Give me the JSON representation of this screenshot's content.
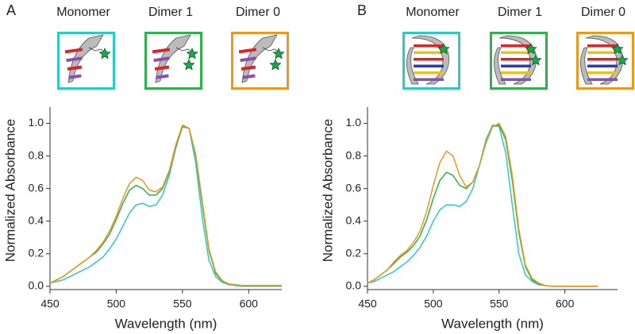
{
  "chart_data": [
    {
      "type": "line",
      "panel": "A",
      "x_label": "Wavelength (nm)",
      "y_label": "Normalized Absorbance",
      "xlim": [
        450,
        625
      ],
      "ylim": [
        -0.02,
        1.1
      ],
      "xticks": [
        450,
        500,
        550,
        600
      ],
      "yticks": [
        {
          "value": 0,
          "label": "0.0"
        },
        0.2,
        0.4,
        0.6,
        0.8,
        {
          "value": 1,
          "label": "1.0"
        }
      ],
      "x": [
        450,
        455,
        460,
        465,
        470,
        475,
        480,
        485,
        490,
        495,
        500,
        505,
        510,
        515,
        520,
        525,
        530,
        535,
        540,
        545,
        550,
        555,
        560,
        565,
        570,
        575,
        580,
        585,
        590,
        595,
        600,
        605,
        610,
        615,
        620,
        625
      ],
      "series": [
        {
          "name": "Monomer",
          "color": "#2cc9c9",
          "values": [
            0.02,
            0.03,
            0.04,
            0.06,
            0.08,
            0.1,
            0.12,
            0.15,
            0.18,
            0.23,
            0.29,
            0.37,
            0.45,
            0.5,
            0.51,
            0.49,
            0.5,
            0.56,
            0.68,
            0.85,
            0.98,
            0.97,
            0.76,
            0.42,
            0.16,
            0.06,
            0.025,
            0.01,
            0.005,
            0,
            0,
            0,
            0,
            0,
            0,
            0
          ]
        },
        {
          "name": "Dimer 1",
          "color": "#2db34a",
          "values": [
            0.02,
            0.04,
            0.06,
            0.09,
            0.12,
            0.15,
            0.18,
            0.21,
            0.26,
            0.32,
            0.41,
            0.51,
            0.59,
            0.62,
            0.6,
            0.56,
            0.56,
            0.6,
            0.7,
            0.86,
            0.98,
            0.97,
            0.8,
            0.5,
            0.22,
            0.08,
            0.03,
            0.015,
            0.01,
            0.005,
            0.005,
            0.005,
            0.005,
            0.005,
            0.005,
            0.005
          ]
        },
        {
          "name": "Dimer 0",
          "color": "#f0951e",
          "values": [
            0.02,
            0.04,
            0.06,
            0.09,
            0.12,
            0.15,
            0.18,
            0.22,
            0.27,
            0.34,
            0.43,
            0.54,
            0.63,
            0.67,
            0.65,
            0.59,
            0.58,
            0.61,
            0.71,
            0.87,
            0.99,
            0.97,
            0.81,
            0.52,
            0.23,
            0.09,
            0.035,
            0.015,
            0.01,
            0.005,
            0.005,
            0.005,
            0.005,
            0.005,
            0.005,
            0.005
          ]
        }
      ]
    },
    {
      "type": "line",
      "panel": "B",
      "x_label": "Wavelength (nm)",
      "y_label": "Normalized Absorbance",
      "xlim": [
        450,
        640
      ],
      "ylim": [
        -0.02,
        1.1
      ],
      "xticks": [
        450,
        500,
        550,
        600
      ],
      "yticks": [
        {
          "value": 0,
          "label": "0.0"
        },
        0.2,
        0.4,
        0.6,
        0.8,
        {
          "value": 1,
          "label": "1.0"
        }
      ],
      "x": [
        450,
        455,
        460,
        465,
        470,
        475,
        480,
        485,
        490,
        495,
        500,
        505,
        510,
        515,
        520,
        525,
        530,
        535,
        540,
        545,
        550,
        555,
        560,
        565,
        570,
        575,
        580,
        585,
        590,
        595,
        600,
        605,
        610,
        615,
        620,
        625
      ],
      "series": [
        {
          "name": "Monomer",
          "color": "#2cc9c9",
          "values": [
            0.02,
            0.03,
            0.05,
            0.07,
            0.09,
            0.12,
            0.15,
            0.19,
            0.24,
            0.31,
            0.4,
            0.47,
            0.5,
            0.5,
            0.49,
            0.52,
            0.6,
            0.74,
            0.9,
            0.99,
            0.98,
            0.82,
            0.5,
            0.2,
            0.07,
            0.03,
            0.01,
            0.005,
            0,
            0,
            0,
            0,
            0,
            0,
            0,
            0
          ]
        },
        {
          "name": "Dimer 1",
          "color": "#2db34a",
          "values": [
            0.02,
            0.04,
            0.07,
            0.1,
            0.14,
            0.18,
            0.21,
            0.25,
            0.31,
            0.41,
            0.54,
            0.65,
            0.7,
            0.68,
            0.62,
            0.6,
            0.64,
            0.74,
            0.88,
            0.98,
            0.99,
            0.9,
            0.65,
            0.33,
            0.12,
            0.04,
            0.015,
            0.005,
            0,
            0,
            0,
            0,
            0,
            0,
            0,
            0
          ]
        },
        {
          "name": "Dimer 0",
          "color": "#f0951e",
          "values": [
            0.02,
            0.04,
            0.07,
            0.1,
            0.15,
            0.19,
            0.22,
            0.27,
            0.34,
            0.46,
            0.62,
            0.76,
            0.83,
            0.8,
            0.68,
            0.61,
            0.64,
            0.74,
            0.88,
            0.98,
            1.0,
            0.92,
            0.68,
            0.35,
            0.13,
            0.05,
            0.02,
            0.005,
            0,
            0,
            0,
            0,
            0,
            0,
            0,
            0
          ]
        }
      ]
    }
  ]
}
